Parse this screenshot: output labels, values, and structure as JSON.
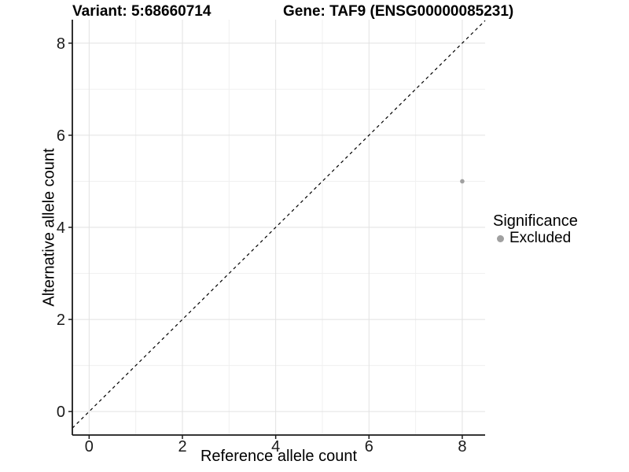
{
  "header": {
    "variant_title": "Variant: 5:68660714",
    "gene_title": "Gene: TAF9 (ENSG00000085231)"
  },
  "chart_data": {
    "type": "scatter",
    "xlabel": "Reference allele count",
    "ylabel": "Alternative allele count",
    "xlim": [
      -0.36,
      8.49
    ],
    "ylim": [
      -0.51,
      8.51
    ],
    "x_ticks": [
      "0",
      "2",
      "4",
      "6",
      "8"
    ],
    "y_ticks": [
      "0",
      "2",
      "4",
      "6",
      "8"
    ],
    "x_tick_values": [
      0,
      2,
      4,
      6,
      8
    ],
    "y_tick_values": [
      0,
      2,
      4,
      6,
      8
    ],
    "x_minor_values": [
      1,
      3,
      5,
      7
    ],
    "y_minor_values": [
      1,
      3,
      5,
      7
    ],
    "grid": true,
    "reference_line": {
      "equation": "y = x",
      "style": "dashed",
      "color": "#000000"
    },
    "series": [
      {
        "name": "Excluded",
        "color": "#a0a0a0",
        "points": [
          {
            "x": 8,
            "y": 5
          }
        ]
      }
    ],
    "legend": {
      "title": "Significance",
      "position": "right",
      "entries": [
        {
          "label": "Excluded",
          "color": "#a0a0a0"
        }
      ]
    },
    "colors": {
      "grid_major": "#e2e2e2",
      "grid_minor": "#f0f0f0",
      "axis_line": "#1a1a1a",
      "tick_text": "#1a1a1a",
      "background": "#ffffff"
    }
  }
}
